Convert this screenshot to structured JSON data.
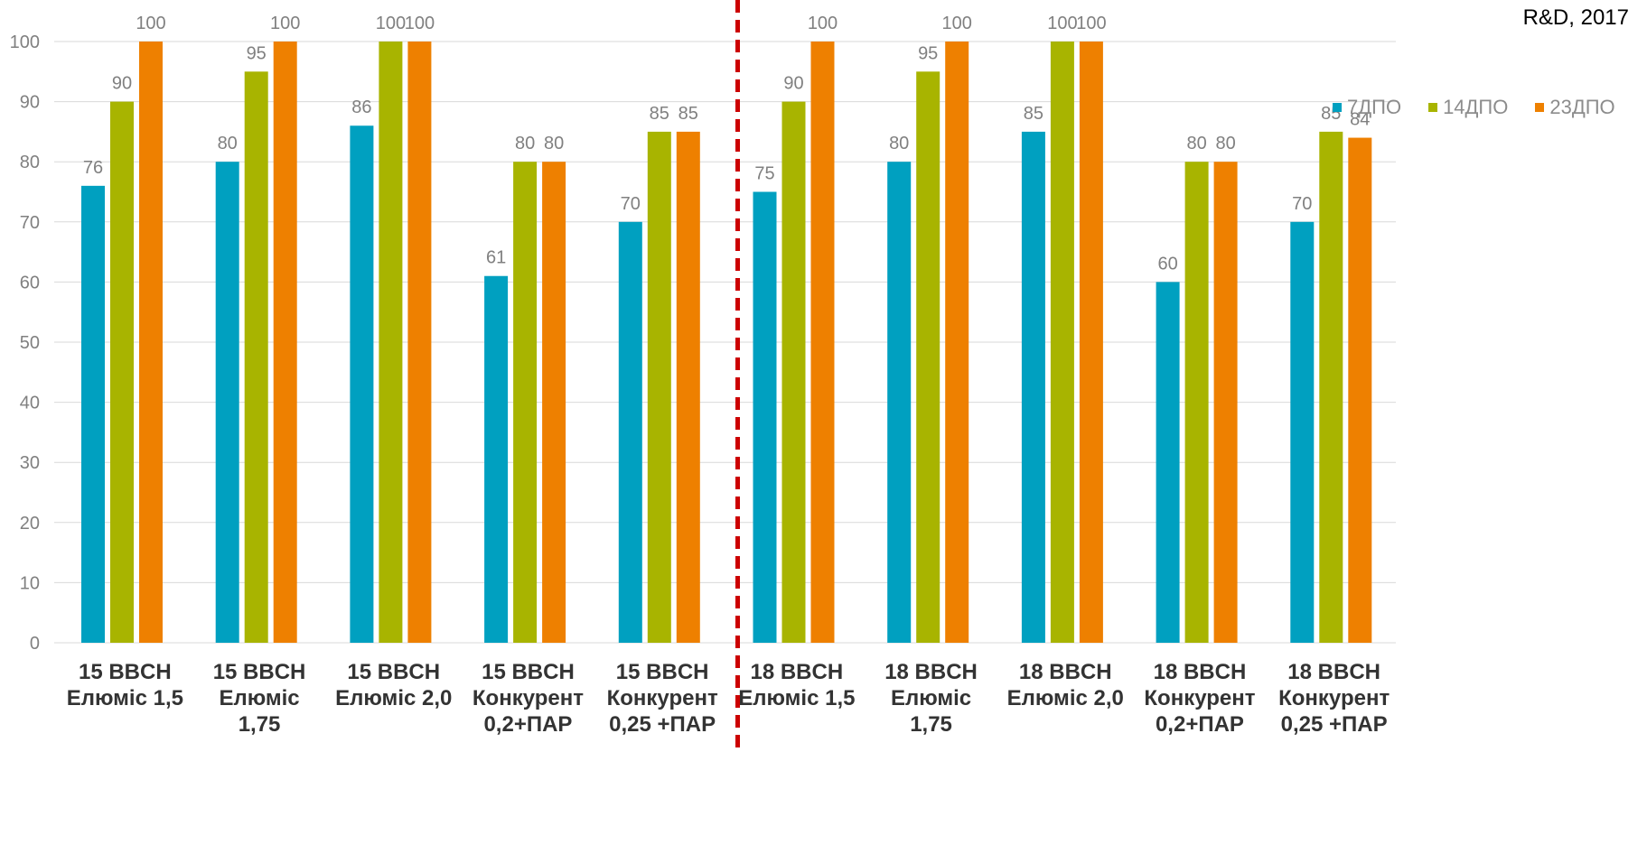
{
  "note": "R&D, 2017",
  "colors": {
    "7ДПО": "#00a0c0",
    "14ДПО": "#a8b400",
    "23ДПО": "#ee8000",
    "grid": "#d9d9d9",
    "divider": "#cc0000",
    "label": "#808080"
  },
  "chart_data": {
    "type": "bar",
    "title": "",
    "xlabel": "",
    "ylabel": "",
    "ylim": [
      0,
      100
    ],
    "yticks": [
      0,
      10,
      20,
      30,
      40,
      50,
      60,
      70,
      80,
      90,
      100
    ],
    "grid": true,
    "legend_position": "top-right",
    "categories": [
      [
        "15 BBCH",
        "Елюміс 1,5"
      ],
      [
        "15 BBCH",
        "Елюміс",
        "1,75"
      ],
      [
        "15 BBCH",
        "Елюміс 2,0"
      ],
      [
        "15 BBCH",
        "Конкурент",
        "0,2+ПАР"
      ],
      [
        "15 BBCH",
        "Конкурент",
        "0,25 +ПАР"
      ],
      [
        "18 BBCH",
        "Елюміс 1,5"
      ],
      [
        "18 BBCH",
        "Елюміс",
        "1,75"
      ],
      [
        "18 BBCH",
        "Елюміс 2,0"
      ],
      [
        "18 BBCH",
        "Конкурент",
        "0,2+ПАР"
      ],
      [
        "18 BBCH",
        "Конкурент",
        "0,25 +ПАР"
      ]
    ],
    "series": [
      {
        "name": "7ДПО",
        "values": [
          76,
          80,
          86,
          61,
          70,
          75,
          80,
          85,
          60,
          70
        ]
      },
      {
        "name": "14ДПО",
        "values": [
          90,
          95,
          100,
          80,
          85,
          90,
          95,
          100,
          80,
          85
        ]
      },
      {
        "name": "23ДПО",
        "values": [
          100,
          100,
          100,
          80,
          85,
          100,
          100,
          100,
          80,
          84
        ]
      }
    ],
    "divider_after_category": 5
  }
}
